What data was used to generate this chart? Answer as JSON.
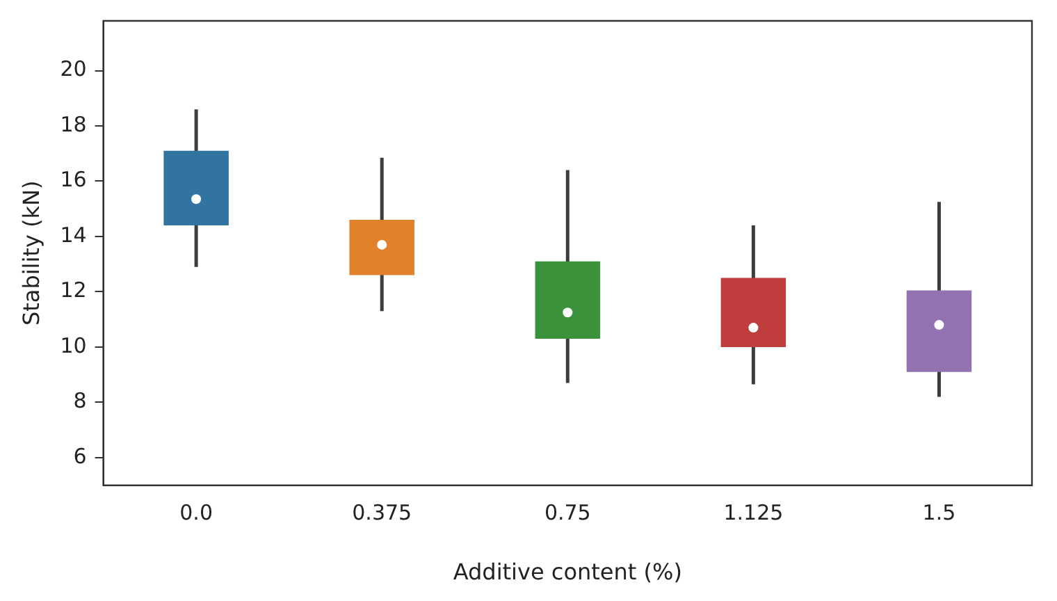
{
  "chart_data": {
    "type": "box",
    "xlabel": "Additive content (%)",
    "ylabel": "Stability (kN)",
    "categories": [
      "0.0",
      "0.375",
      "0.75",
      "1.125",
      "1.5"
    ],
    "colors": [
      "#3274a1",
      "#e1812c",
      "#3a923a",
      "#c03d3e",
      "#9372b2"
    ],
    "boxes": [
      {
        "low": 12.9,
        "q1": 14.4,
        "median": 15.35,
        "q3": 17.1,
        "high": 18.6
      },
      {
        "low": 11.3,
        "q1": 12.6,
        "median": 13.7,
        "q3": 14.6,
        "high": 16.85
      },
      {
        "low": 8.7,
        "q1": 10.3,
        "median": 11.25,
        "q3": 13.1,
        "high": 16.4
      },
      {
        "low": 8.65,
        "q1": 10.0,
        "median": 10.7,
        "q3": 12.5,
        "high": 14.4
      },
      {
        "low": 8.2,
        "q1": 9.1,
        "median": 10.8,
        "q3": 12.05,
        "high": 15.25
      }
    ],
    "ylim": [
      5.0,
      21.8
    ],
    "yticks": [
      6,
      8,
      10,
      12,
      14,
      16,
      18,
      20
    ],
    "grid": false,
    "legend": false
  }
}
